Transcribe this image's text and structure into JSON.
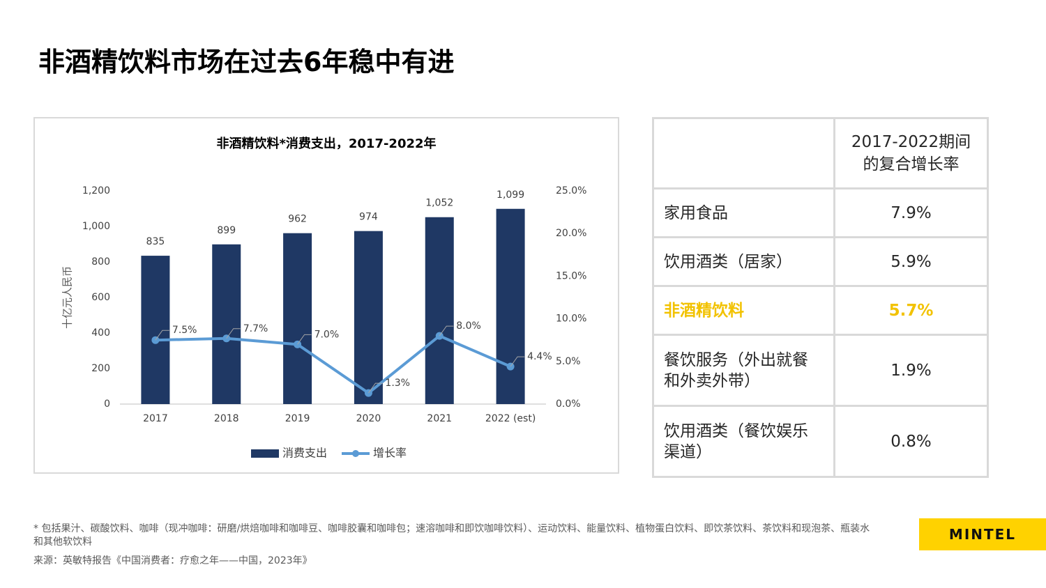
{
  "title": "非酒精饮料市场在过去6年稳中有进",
  "chart_data": {
    "type": "bar",
    "title": "非酒精饮料*消费支出，2017-2022年",
    "ylabel": "十亿元人民币",
    "categories": [
      "2017",
      "2018",
      "2019",
      "2020",
      "2021",
      "2022 (est)"
    ],
    "series": [
      {
        "name": "消费支出",
        "type": "bar",
        "color": "#1f3864",
        "values": [
          835,
          899,
          962,
          974,
          1052,
          1099
        ],
        "value_labels": [
          "835",
          "899",
          "962",
          "974",
          "1,052",
          "1,099"
        ]
      },
      {
        "name": "增长率",
        "type": "line",
        "axis": "y2",
        "color": "#5b9bd5",
        "values": [
          7.5,
          7.7,
          7.0,
          1.3,
          8.0,
          4.4
        ],
        "value_labels": [
          "7.5%",
          "7.7%",
          "7.0%",
          "1.3%",
          "8.0%",
          "4.4%"
        ]
      }
    ],
    "ylim": [
      0,
      1200
    ],
    "yticks": [
      0,
      200,
      400,
      600,
      800,
      {
        "value": 1000,
        "label": "1,000"
      },
      {
        "value": 1200,
        "label": "1,200"
      }
    ],
    "y2lim": [
      0,
      25
    ],
    "y2ticks": [
      {
        "value": 0,
        "label": "0.0%"
      },
      {
        "value": 5,
        "label": "5.0%"
      },
      {
        "value": 10,
        "label": "10.0%"
      },
      {
        "value": 15,
        "label": "15.0%"
      },
      {
        "value": 20,
        "label": "20.0%"
      },
      {
        "value": 25,
        "label": "25.0%"
      }
    ],
    "grid": false,
    "legend": "bottom"
  },
  "table": {
    "header": "2017-2022期间的复合增长率",
    "rows": [
      [
        "家用食品",
        "7.9%"
      ],
      [
        "饮用酒类（居家）",
        "5.9%"
      ],
      [
        "非酒精饮料",
        "5.7%"
      ],
      [
        "餐饮服务（外出就餐和外卖外带）",
        "1.9%"
      ],
      [
        "饮用酒类（餐饮娱乐渠道）",
        "0.8%"
      ]
    ],
    "highlight_row": 2,
    "highlight_color": "#f2c200"
  },
  "footnote": "* 包括果汁、碳酸饮料、咖啡（现冲咖啡：研磨/烘焙咖啡和咖啡豆、咖啡胶囊和咖啡包；速溶咖啡和即饮咖啡饮料）、运动饮料、能量饮料、植物蛋白饮料、即饮茶饮料、茶饮料和现泡茶、瓶装水和其他软饮料",
  "source": "来源：英敏特报告《中国消费者：疗愈之年——中国，2023年》",
  "logo": "MINTEL"
}
